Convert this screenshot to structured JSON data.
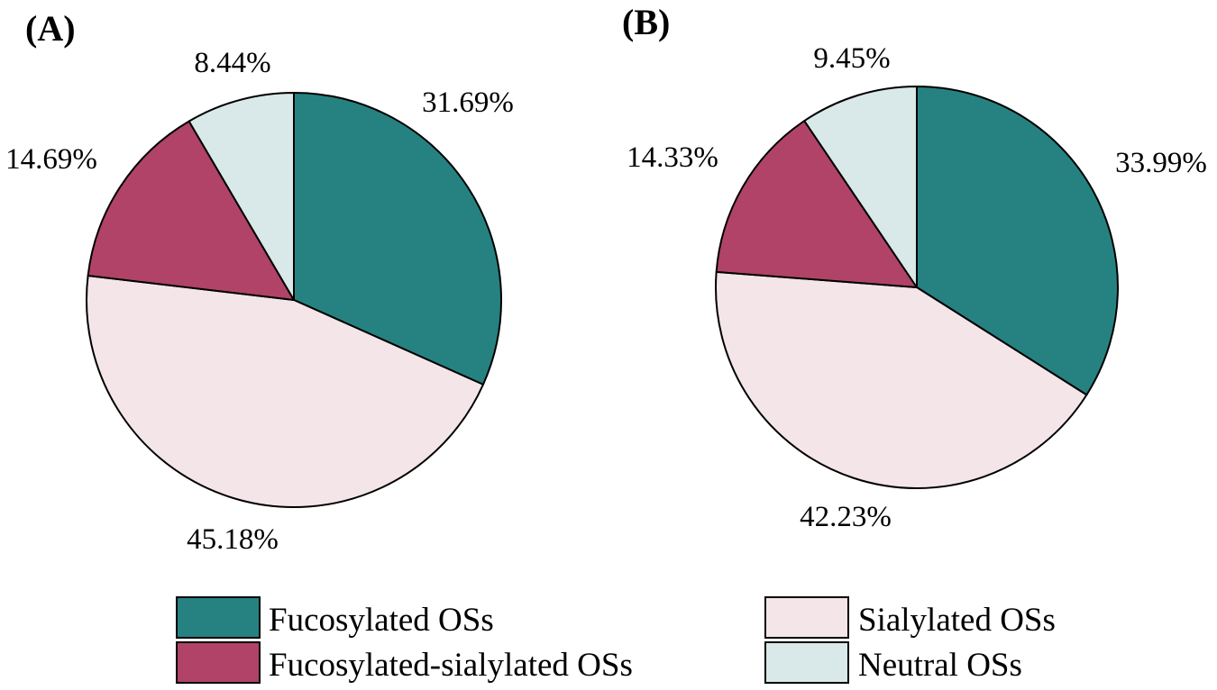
{
  "colors": {
    "fucosylated": "#268281",
    "fucosylated_sialylated": "#b04367",
    "sialylated": "#f3e5e8",
    "neutral": "#d9e8e8"
  },
  "chart_data": [
    {
      "type": "pie",
      "panel_label": "(A)",
      "slices": [
        {
          "key": "fucosylated",
          "name": "Fucosylated OSs",
          "value": 31.69,
          "label": "31.69%"
        },
        {
          "key": "sialylated",
          "name": "Sialylated OSs",
          "value": 45.18,
          "label": "45.18%"
        },
        {
          "key": "fucosylated_sialylated",
          "name": "Fucosylated-sialylated OSs",
          "value": 14.69,
          "label": "14.69%"
        },
        {
          "key": "neutral",
          "name": "Neutral OSs",
          "value": 8.44,
          "label": "8.44%"
        }
      ],
      "start": "12 o'clock",
      "direction": "clockwise"
    },
    {
      "type": "pie",
      "panel_label": "(B)",
      "slices": [
        {
          "key": "fucosylated",
          "name": "Fucosylated OSs",
          "value": 33.99,
          "label": "33.99%"
        },
        {
          "key": "sialylated",
          "name": "Sialylated OSs",
          "value": 42.23,
          "label": "42.23%"
        },
        {
          "key": "fucosylated_sialylated",
          "name": "Fucosylated-sialylated OSs",
          "value": 14.33,
          "label": "14.33%"
        },
        {
          "key": "neutral",
          "name": "Neutral OSs",
          "value": 9.45,
          "label": "9.45%"
        }
      ],
      "start": "12 o'clock",
      "direction": "clockwise"
    }
  ],
  "legend": [
    {
      "key": "fucosylated",
      "label": "Fucosylated OSs"
    },
    {
      "key": "sialylated",
      "label": "Sialylated OSs"
    },
    {
      "key": "fucosylated_sialylated",
      "label": "Fucosylated-sialylated OSs"
    },
    {
      "key": "neutral",
      "label": "Neutral OSs"
    }
  ]
}
